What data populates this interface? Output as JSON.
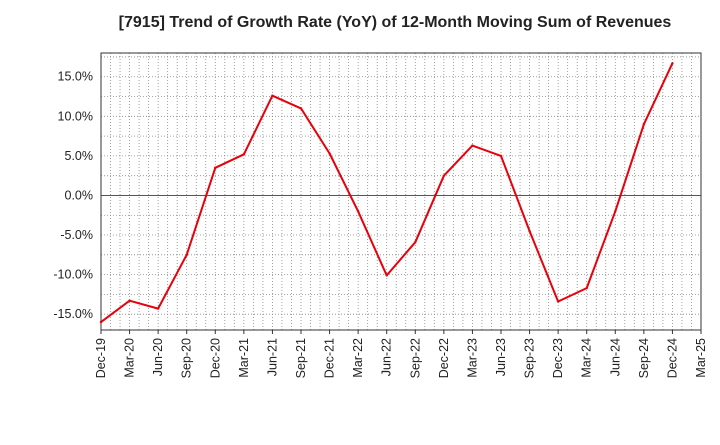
{
  "chart_data": {
    "type": "line",
    "title": "[7915]  Trend of Growth Rate (YoY) of 12-Month Moving Sum of Revenues",
    "xlabel": "",
    "ylabel": "",
    "categories": [
      "Dec-19",
      "Mar-20",
      "Jun-20",
      "Sep-20",
      "Dec-20",
      "Mar-21",
      "Jun-21",
      "Sep-21",
      "Dec-21",
      "Mar-22",
      "Jun-22",
      "Sep-22",
      "Dec-22",
      "Mar-23",
      "Jun-23",
      "Sep-23",
      "Dec-23",
      "Mar-24",
      "Jun-24",
      "Sep-24",
      "Dec-24",
      "Mar-25"
    ],
    "y_ticks": [
      15,
      10,
      5,
      0,
      -5,
      -10,
      -15
    ],
    "y_tick_labels": [
      "15.0%",
      "10.0%",
      "5.0%",
      "0.0%",
      "-5.0%",
      "-10.0%",
      "-15.0%"
    ],
    "ylim": [
      -17,
      18
    ],
    "grid": true,
    "series": [
      {
        "color": "#e8000b",
        "values": [
          -16.0,
          -13.3,
          -14.3,
          -7.5,
          3.5,
          5.2,
          12.6,
          11.0,
          5.3,
          -2.0,
          -10.1,
          -5.9,
          2.5,
          6.3,
          5.0,
          -4.5,
          -13.4,
          -11.7,
          -2.0,
          9.0,
          16.7,
          null
        ]
      }
    ]
  }
}
